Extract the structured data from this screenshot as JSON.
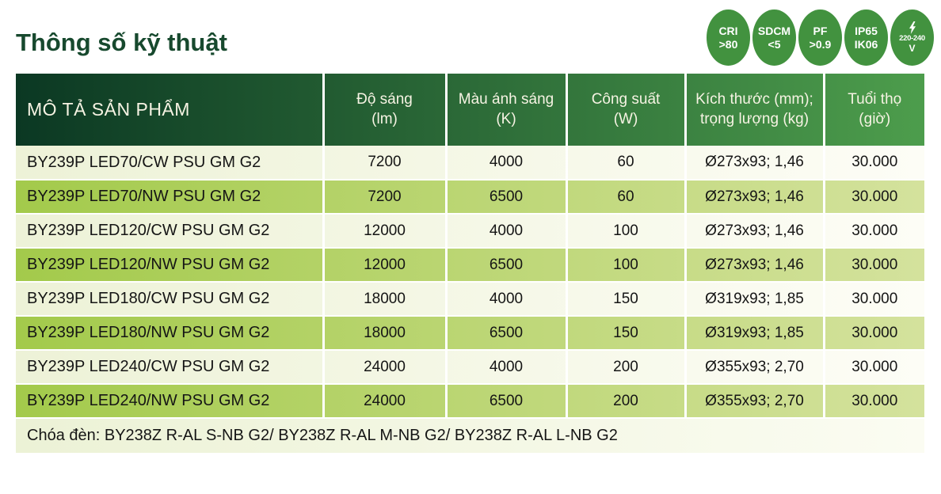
{
  "title": "Thông số kỹ thuật",
  "badges": [
    {
      "name": "cri-badge",
      "line1": "CRI",
      "line2": ">80",
      "icon": ""
    },
    {
      "name": "sdcm-badge",
      "line1": "SDCM",
      "line2": "<5",
      "icon": ""
    },
    {
      "name": "pf-badge",
      "line1": "PF",
      "line2": ">0.9",
      "icon": ""
    },
    {
      "name": "ip-ik-badge",
      "line1": "IP65",
      "line2": "IK06",
      "icon": ""
    },
    {
      "name": "voltage-badge",
      "line1": "220-240",
      "line2": "V",
      "icon": "lightning-icon"
    }
  ],
  "table": {
    "columns": [
      {
        "line1": "MÔ TẢ SẢN PHẨM",
        "line2": ""
      },
      {
        "line1": "Độ sáng",
        "line2": "(lm)"
      },
      {
        "line1": "Màu ánh sáng",
        "line2": "(K)"
      },
      {
        "line1": "Công suất",
        "line2": "(W)"
      },
      {
        "line1": "Kích thước (mm);",
        "line2": "trọng lượng (kg)"
      },
      {
        "line1": "Tuổi thọ",
        "line2": "(giờ)"
      }
    ],
    "rows": [
      [
        "BY239P LED70/CW PSU GM G2",
        "7200",
        "4000",
        "60",
        "Ø273x93; 1,46",
        "30.000"
      ],
      [
        "BY239P LED70/NW PSU GM G2",
        "7200",
        "6500",
        "60",
        "Ø273x93; 1,46",
        "30.000"
      ],
      [
        "BY239P LED120/CW PSU GM G2",
        "12000",
        "4000",
        "100",
        "Ø273x93; 1,46",
        "30.000"
      ],
      [
        "BY239P LED120/NW PSU GM G2",
        "12000",
        "6500",
        "100",
        "Ø273x93; 1,46",
        "30.000"
      ],
      [
        "BY239P LED180/CW PSU GM G2",
        "18000",
        "4000",
        "150",
        "Ø319x93; 1,85",
        "30.000"
      ],
      [
        "BY239P LED180/NW PSU GM G2",
        "18000",
        "6500",
        "150",
        "Ø319x93; 1,85",
        "30.000"
      ],
      [
        "BY239P LED240/CW PSU GM G2",
        "24000",
        "4000",
        "200",
        "Ø355x93; 2,70",
        "30.000"
      ],
      [
        "BY239P LED240/NW PSU GM G2",
        "24000",
        "6500",
        "200",
        "Ø355x93; 2,70",
        "30.000"
      ]
    ],
    "footer_note": "Chóa đèn: BY238Z R-AL S-NB G2/ BY238Z R-AL M-NB G2/ BY238Z R-AL L-NB G2"
  },
  "colors": {
    "title_green": "#17492e",
    "badge_green": "#42923f",
    "header_gradient": [
      "#0b3823",
      "#4d9d4c"
    ],
    "row_light_gradient": [
      "#edf2d7",
      "#fdfdf6"
    ],
    "row_green_gradient": [
      "#a3ca4b",
      "#d4e29d"
    ],
    "header_text": "#f6f3e3",
    "body_text": "#151515"
  }
}
